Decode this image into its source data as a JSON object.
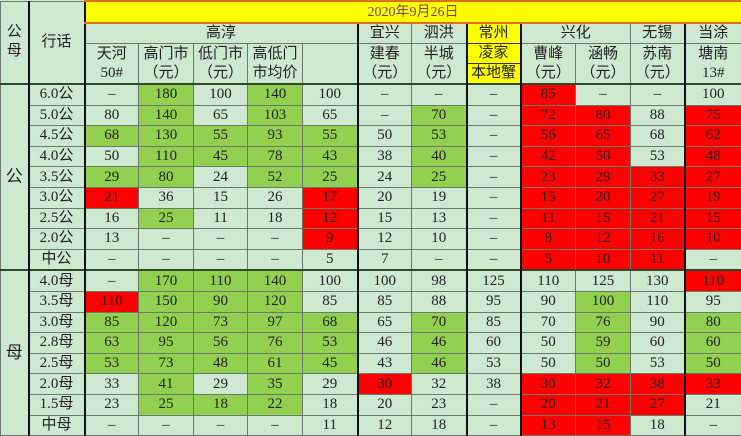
{
  "title": "2020年9月26日",
  "header": {
    "gender_col": [
      "公",
      "母"
    ],
    "slang_col": "行话",
    "regions": [
      "高淳",
      "宜兴",
      "泗洪",
      "常州",
      "兴化",
      "无锡",
      "当涂"
    ],
    "columns": [
      [
        "天河",
        "50#"
      ],
      [
        "高门市",
        "（元）"
      ],
      [
        "低门市",
        "（元）"
      ],
      [
        "高低门",
        "市均价"
      ],
      [
        "",
        ""
      ],
      [
        "建春",
        "（元）"
      ],
      [
        "半城",
        "（元）"
      ],
      [
        "凌家",
        "本地蟹"
      ],
      [
        "曹峰",
        "（元）"
      ],
      [
        "涵畅",
        "（元）"
      ],
      [
        "苏南",
        "（元）"
      ],
      [
        "塘南",
        "13#"
      ]
    ]
  },
  "colors": {
    "background": "#cfe8d0",
    "green": "#92d050",
    "red": "#ff0000",
    "title_bg": "#ffff00"
  },
  "groups": [
    {
      "label": "公",
      "rows": [
        {
          "grade": "6.0公",
          "values": [
            "–",
            "180",
            "100",
            "140",
            "100",
            "–",
            "–",
            "–",
            "85",
            "–",
            "–",
            "100"
          ],
          "colors": "ngngnnnnrnnn"
        },
        {
          "grade": "5.0公",
          "values": [
            "80",
            "140",
            "65",
            "103",
            "65",
            "–",
            "70",
            "–",
            "72",
            "80",
            "88",
            "75"
          ],
          "colors": "ngngnngnrrnr"
        },
        {
          "grade": "4.5公",
          "values": [
            "68",
            "130",
            "55",
            "93",
            "55",
            "50",
            "53",
            "–",
            "56",
            "65",
            "68",
            "62"
          ],
          "colors": "gggggngnrrnr"
        },
        {
          "grade": "4.0公",
          "values": [
            "50",
            "110",
            "45",
            "78",
            "43",
            "38",
            "40",
            "–",
            "42",
            "50",
            "53",
            "48"
          ],
          "colors": "nggggngnrrnr"
        },
        {
          "grade": "3.5公",
          "values": [
            "29",
            "80",
            "24",
            "52",
            "25",
            "24",
            "25",
            "–",
            "23",
            "29",
            "33",
            "27"
          ],
          "colors": "ggnggngnrrrr"
        },
        {
          "grade": "3.0公",
          "values": [
            "21",
            "36",
            "15",
            "26",
            "17",
            "20",
            "19",
            "–",
            "15",
            "20",
            "27",
            "19"
          ],
          "colors": "rnnnrnnnrrrr"
        },
        {
          "grade": "2.5公",
          "values": [
            "16",
            "25",
            "11",
            "18",
            "12",
            "15",
            "13",
            "–",
            "11",
            "15",
            "21",
            "15"
          ],
          "colors": "ngnnrnnnrrrr"
        },
        {
          "grade": "2.0公",
          "values": [
            "13",
            "–",
            "–",
            "–",
            "9",
            "12",
            "10",
            "–",
            "8",
            "12",
            "16",
            "10"
          ],
          "colors": "nnnnrnnnrrrr"
        },
        {
          "grade": "中公",
          "values": [
            "–",
            "–",
            "–",
            "–",
            "5",
            "7",
            "–",
            "–",
            "5",
            "10",
            "11",
            "–"
          ],
          "colors": "nnnnnnnnrrrn"
        }
      ]
    },
    {
      "label": "母",
      "rows": [
        {
          "grade": "4.0母",
          "values": [
            "–",
            "170",
            "110",
            "140",
            "100",
            "100",
            "98",
            "125",
            "110",
            "125",
            "130",
            "110"
          ],
          "colors": "ngggnnnnnnnr"
        },
        {
          "grade": "3.5母",
          "values": [
            "110",
            "150",
            "90",
            "120",
            "85",
            "85",
            "88",
            "95",
            "90",
            "100",
            "110",
            "95"
          ],
          "colors": "rgggnnnnngnn"
        },
        {
          "grade": "3.0母",
          "values": [
            "85",
            "120",
            "73",
            "97",
            "68",
            "65",
            "70",
            "85",
            "70",
            "76",
            "90",
            "80"
          ],
          "colors": "gggggngnngng"
        },
        {
          "grade": "2.8母",
          "values": [
            "63",
            "95",
            "56",
            "76",
            "53",
            "46",
            "46",
            "60",
            "50",
            "59",
            "60",
            "60"
          ],
          "colors": "gggggngnngng"
        },
        {
          "grade": "2.5母",
          "values": [
            "53",
            "73",
            "48",
            "61",
            "45",
            "43",
            "46",
            "53",
            "50",
            "50",
            "53",
            "50"
          ],
          "colors": "gggggngnngng"
        },
        {
          "grade": "2.0母",
          "values": [
            "33",
            "41",
            "29",
            "35",
            "29",
            "30",
            "32",
            "38",
            "30",
            "32",
            "38",
            "33"
          ],
          "colors": "ngngnrnnrrrr"
        },
        {
          "grade": "1.5母",
          "values": [
            "23",
            "25",
            "18",
            "22",
            "18",
            "20",
            "23",
            "–",
            "20",
            "21",
            "27",
            "21"
          ],
          "colors": "ngggnnnnrrrn"
        },
        {
          "grade": "中母",
          "values": [
            "–",
            "–",
            "–",
            "–",
            "11",
            "12",
            "18",
            "–",
            "13",
            "15",
            "18",
            "–"
          ],
          "colors": "nnnnnnnnrrnn"
        }
      ]
    }
  ]
}
